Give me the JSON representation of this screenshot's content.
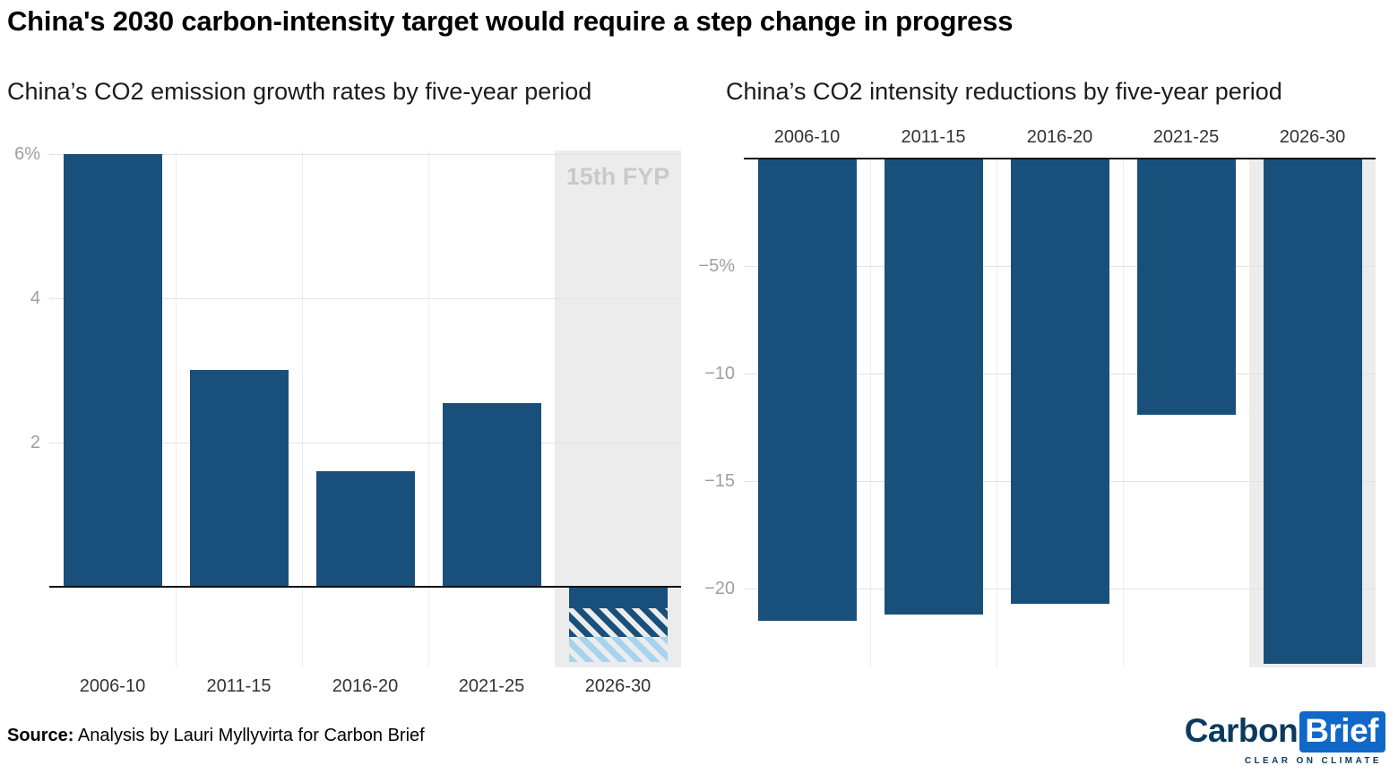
{
  "page": {
    "title": "China's 2030 carbon-intensity target would require a step change in progress",
    "source_label": "Source:",
    "source_text": " Analysis by Lauri Myllyvirta for Carbon Brief"
  },
  "logo": {
    "part1": "Carbon",
    "part2": "Brief",
    "tagline": "CLEAR ON CLIMATE"
  },
  "colors": {
    "bar": "#19507b",
    "bar_light": "#a6d3ee",
    "band": "#ececec",
    "band_label": "#c9c9c9",
    "grid": "#e2e2e2",
    "grid_v": "#ececec",
    "logo_blue": "#1068c8",
    "logo_navy": "#0a3a5e"
  },
  "chart_data": [
    {
      "type": "bar",
      "title": "China’s CO2 emission growth rates by five-year period",
      "categories": [
        "2006-10",
        "2011-15",
        "2016-20",
        "2021-25",
        "2026-30"
      ],
      "values": [
        6.0,
        3.0,
        1.6,
        2.55,
        -0.3
      ],
      "projection_segments": [
        {
          "category": "2026-30",
          "style": "hatch-dark",
          "from": -0.3,
          "to": -0.7
        },
        {
          "category": "2026-30",
          "style": "hatch-light",
          "from": -0.7,
          "to": -1.05
        }
      ],
      "ylim": [
        -1.12,
        6.05
      ],
      "yticks": [
        {
          "v": 6,
          "label": "6%"
        },
        {
          "v": 4,
          "label": "4"
        },
        {
          "v": 2,
          "label": "2"
        }
      ],
      "band": {
        "category": "2026-30",
        "label": "15th FYP"
      },
      "xlabels_position": "bottom",
      "grid": true,
      "ylabel": "",
      "xlabel": ""
    },
    {
      "type": "bar",
      "title": "China’s CO2 intensity reductions by five-year period",
      "categories": [
        "2006-10",
        "2011-15",
        "2016-20",
        "2021-25",
        "2026-30"
      ],
      "values": [
        -21.5,
        -21.2,
        -20.7,
        -11.9,
        -23.5
      ],
      "ylim": [
        -23.67,
        0
      ],
      "yticks": [
        {
          "v": -5,
          "label": "−5%"
        },
        {
          "v": -10,
          "label": "−10"
        },
        {
          "v": -15,
          "label": "−15"
        },
        {
          "v": -20,
          "label": "−20"
        }
      ],
      "band": {
        "category": "2026-30",
        "label": ""
      },
      "xlabels_position": "top",
      "grid": true,
      "ylabel": "",
      "xlabel": ""
    }
  ]
}
